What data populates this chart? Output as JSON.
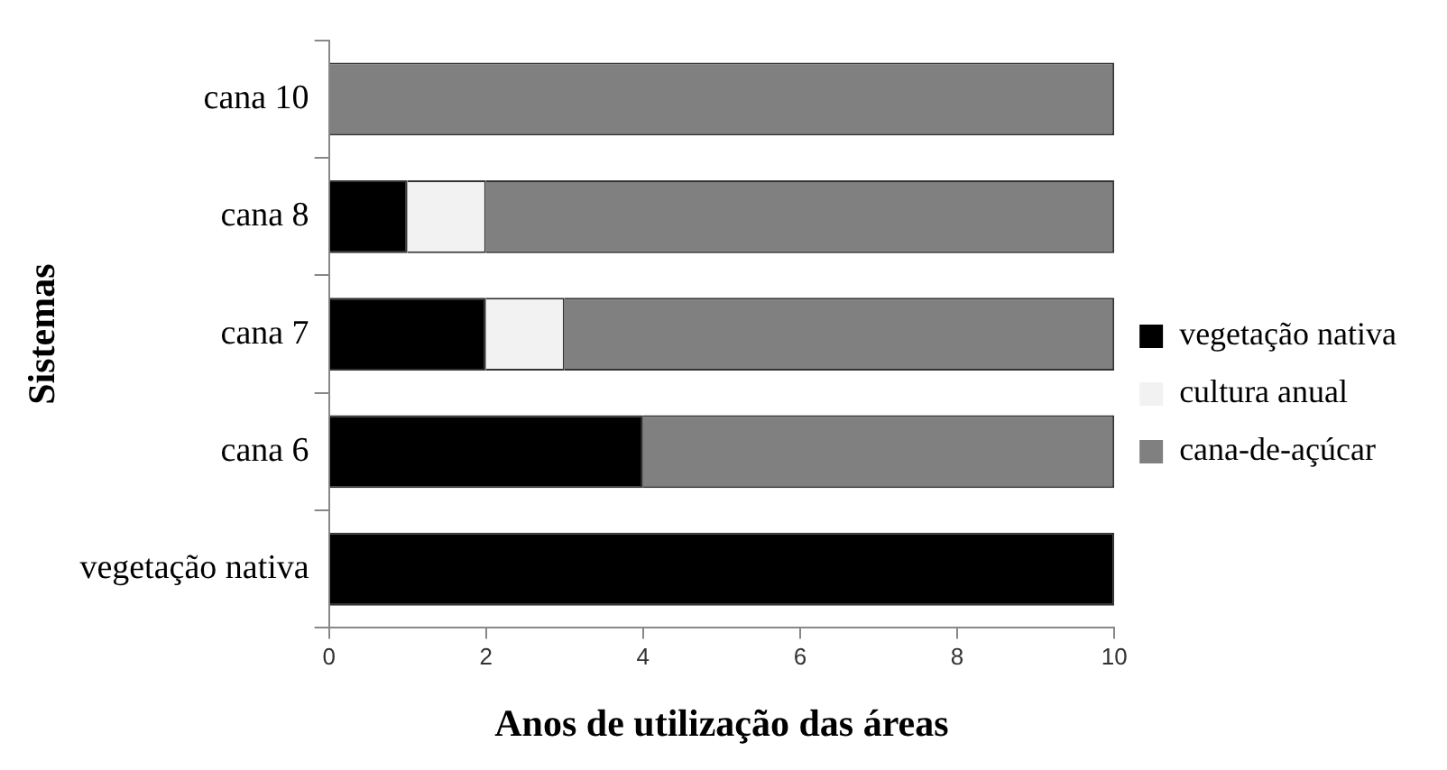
{
  "chart_data": {
    "type": "bar",
    "orientation": "horizontal",
    "stacked": true,
    "xlabel": "Anos de utilização das áreas",
    "ylabel": "Sistemas",
    "categories": [
      "cana 10",
      "cana 8",
      "cana 7",
      "cana 6",
      "vegetação nativa"
    ],
    "series": [
      {
        "name": "vegetação nativa",
        "color": "#000000",
        "values": [
          0,
          1,
          2,
          4,
          10
        ]
      },
      {
        "name": "cultura anual",
        "color": "#f2f2f2",
        "values": [
          0,
          1,
          1,
          0,
          0
        ]
      },
      {
        "name": "cana-de-açúcar",
        "color": "#808080",
        "values": [
          10,
          8,
          7,
          6,
          0
        ]
      }
    ],
    "xlim": [
      0,
      10
    ],
    "xticks": [
      0,
      2,
      4,
      6,
      8,
      10
    ],
    "grid": false,
    "legend": "right"
  }
}
